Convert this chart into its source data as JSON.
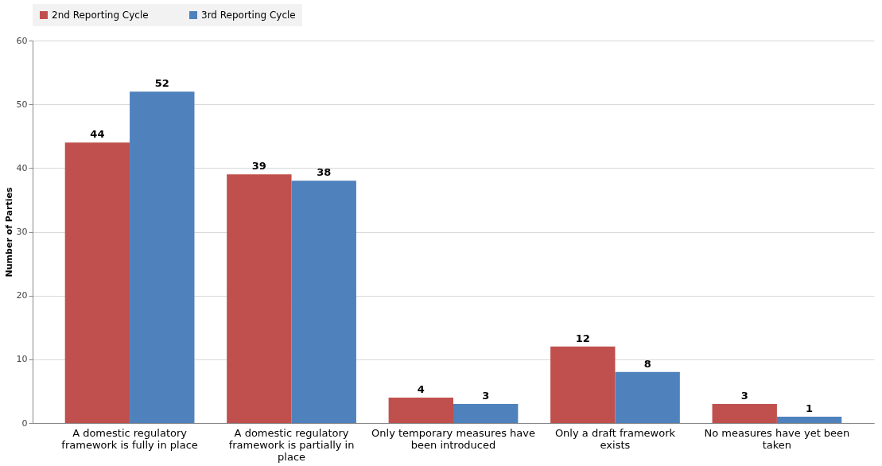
{
  "chart_data": {
    "type": "bar",
    "ylabel": "Number of Parties",
    "categories": [
      "A domestic regulatory framework is fully in place",
      "A domestic regulatory framework is partially in place",
      "Only temporary measures have been introduced",
      "Only a draft framework exists",
      "No measures have yet been taken"
    ],
    "series": [
      {
        "name": "2nd Reporting Cycle",
        "color": "#c0504d",
        "values": [
          44,
          39,
          4,
          12,
          3
        ]
      },
      {
        "name": "3rd Reporting Cycle",
        "color": "#4f81bd",
        "values": [
          52,
          38,
          3,
          8,
          1
        ]
      }
    ],
    "ylim": [
      0,
      60
    ],
    "yticks": [
      0,
      10,
      20,
      30,
      40,
      50,
      60
    ],
    "grid": "y",
    "legend": "top",
    "data_labels": true
  }
}
